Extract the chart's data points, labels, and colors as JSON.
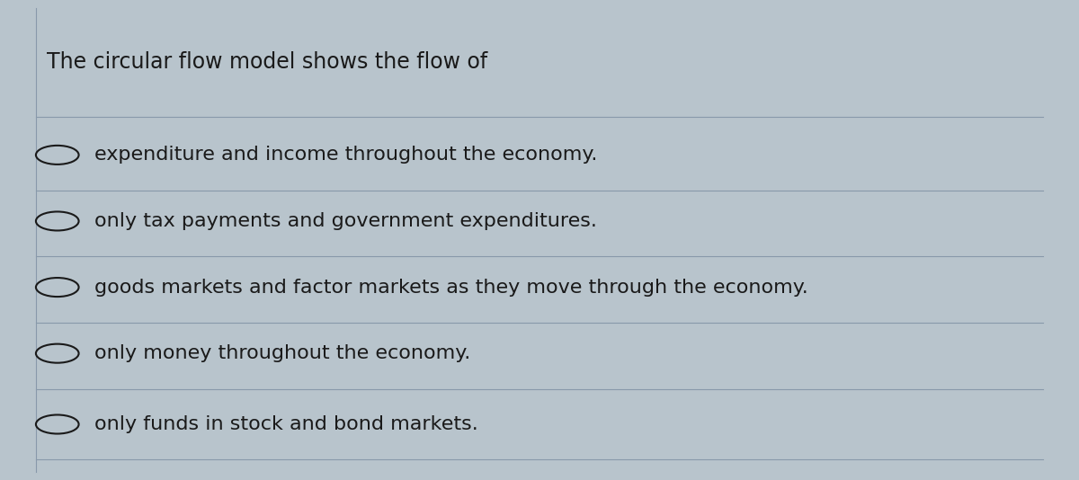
{
  "title": "The circular flow model shows the flow of",
  "options": [
    "expenditure and income throughout the economy.",
    "only tax payments and government expenditures.",
    "goods markets and factor markets as they move through the economy.",
    "only money throughout the economy.",
    "only funds in stock and bond markets."
  ],
  "background_color": "#b8c4cc",
  "text_color": "#1a1a1a",
  "line_color": "#8899aa",
  "title_fontsize": 17,
  "option_fontsize": 16,
  "fig_width": 12.0,
  "fig_height": 5.34
}
